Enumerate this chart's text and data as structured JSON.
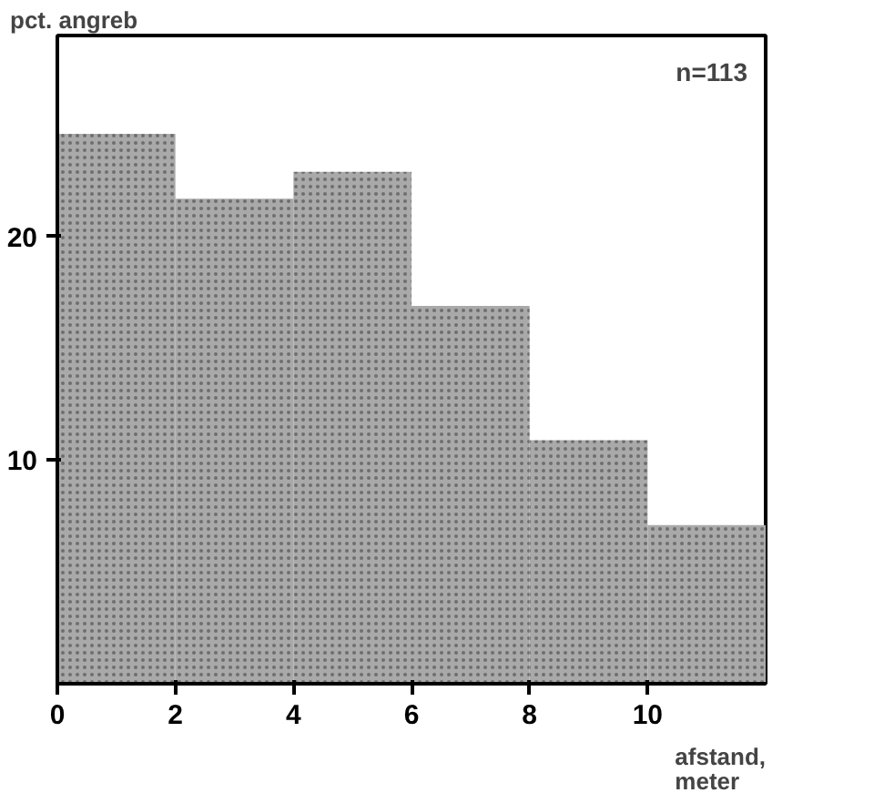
{
  "chart_data": {
    "type": "histogram",
    "ylabel": "pct. angreb",
    "xlabel": "afstand,\nmeter",
    "annotations": [
      "n=113"
    ],
    "bins": [
      0,
      2,
      4,
      6,
      8,
      10,
      12
    ],
    "values": [
      24.6,
      21.7,
      22.9,
      16.9,
      10.9,
      7.1
    ],
    "color": "#a9a9a9",
    "xlim": [
      0,
      12
    ],
    "ylim": [
      0,
      29
    ],
    "xticks": [
      0,
      2,
      4,
      6,
      8,
      10
    ],
    "yticks": [
      10,
      20
    ],
    "grid": false
  }
}
